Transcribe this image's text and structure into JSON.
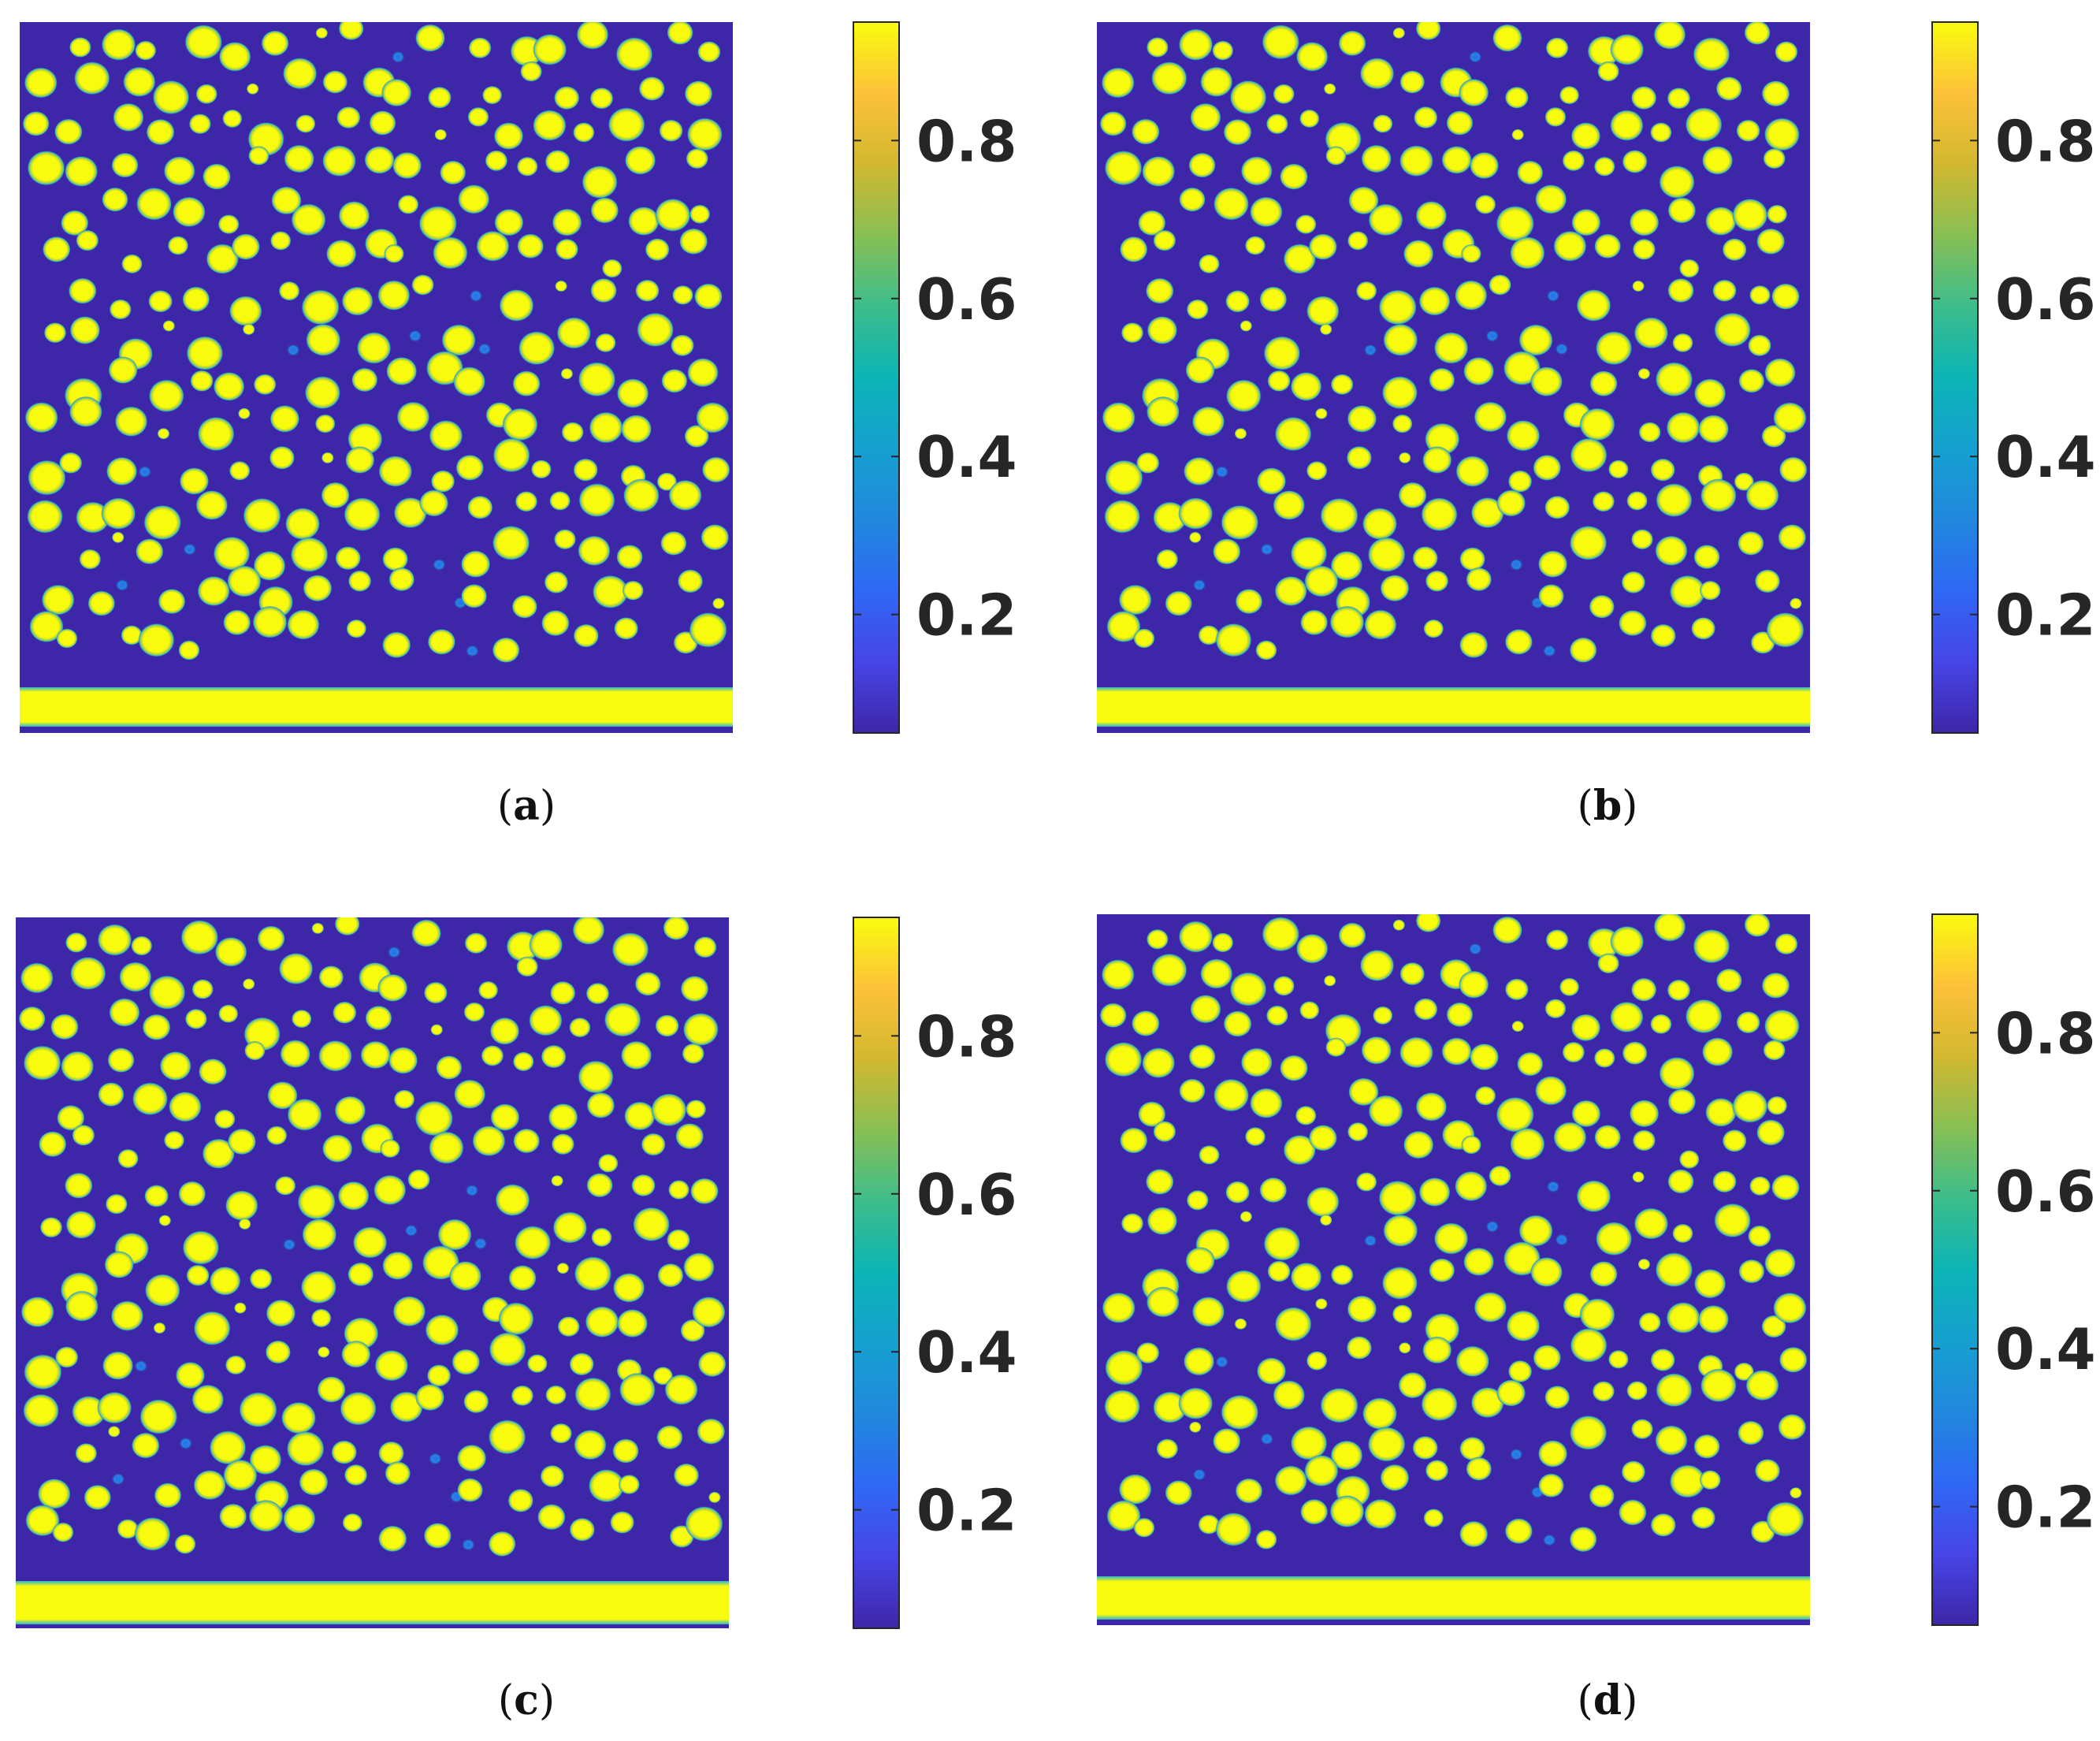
{
  "chart_data": [
    {
      "type": "heatmap",
      "panel": "a",
      "caption_open": "(",
      "caption_letter": "a",
      "caption_close": ")",
      "colormap": "parula",
      "colorbar": {
        "range": [
          0.05,
          0.95
        ],
        "ticks": [
          "0.2",
          "0.4",
          "0.6",
          "0.8"
        ]
      },
      "background_value": 0.05,
      "particle_value": 0.95,
      "description_of_field": "dense array of round particles above a solid bottom layer"
    },
    {
      "type": "heatmap",
      "panel": "b",
      "caption_open": "(",
      "caption_letter": "b",
      "caption_close": ")",
      "colormap": "parula",
      "colorbar": {
        "range": [
          0.05,
          0.95
        ],
        "ticks": [
          "0.2",
          "0.4",
          "0.6",
          "0.8"
        ]
      },
      "background_value": 0.05,
      "particle_value": 0.95
    },
    {
      "type": "heatmap",
      "panel": "c",
      "caption_open": "(",
      "caption_letter": "c",
      "caption_close": ")",
      "colormap": "parula",
      "colorbar": {
        "range": [
          0.05,
          0.95
        ],
        "ticks": [
          "0.2",
          "0.4",
          "0.6",
          "0.8"
        ]
      },
      "background_value": 0.05,
      "particle_value": 0.95
    },
    {
      "type": "heatmap",
      "panel": "d",
      "caption_open": "(",
      "caption_letter": "d",
      "caption_close": ")",
      "colormap": "parula",
      "colorbar": {
        "range": [
          0.05,
          0.95
        ],
        "ticks": [
          "0.2",
          "0.4",
          "0.6",
          "0.8"
        ]
      },
      "background_value": 0.05,
      "particle_value": 0.95
    }
  ],
  "colors": {
    "background": "#3e26a8",
    "particle": "#f9fb0e",
    "halo": "#2db7c9",
    "ring": "#4a9ef0"
  }
}
